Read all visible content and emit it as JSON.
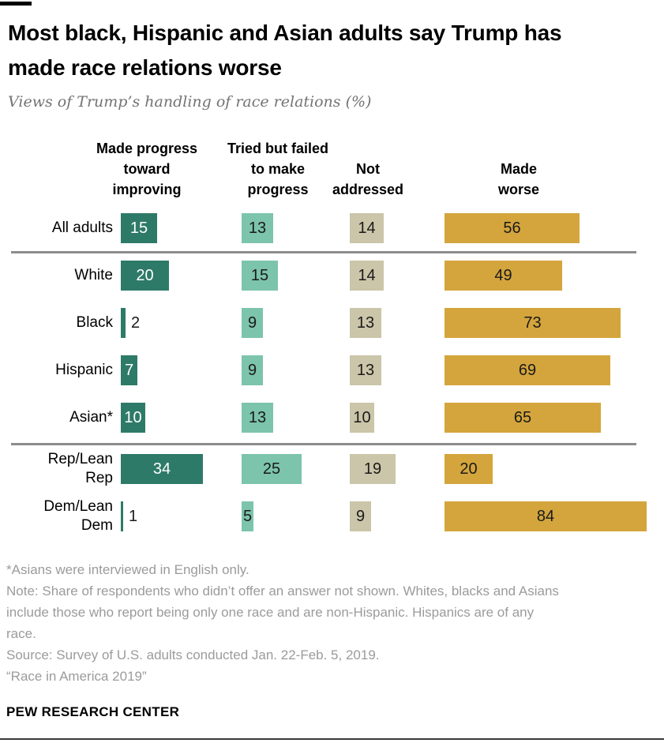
{
  "header": {
    "title": "Most black, Hispanic and Asian adults say Trump has\nmade race relations worse",
    "subtitle": "Views of Trump’s handling of race relations (%)"
  },
  "chart_data": {
    "type": "bar",
    "orientation": "horizontal",
    "unit": "%",
    "categories": [
      "All adults",
      "White",
      "Black",
      "Hispanic",
      "Asian*",
      "Rep/Lean Rep",
      "Dem/Lean Dem"
    ],
    "category_display": [
      "All adults",
      "White",
      "Black",
      "Hispanic",
      "Asian*",
      "Rep/Lean\nRep",
      "Dem/Lean\nDem"
    ],
    "series": [
      {
        "name": "Made progress toward improving",
        "header": "Made progress\ntoward\nimproving",
        "color": "#2e7a68",
        "label_color_inside": "#ffffff",
        "values": [
          15,
          20,
          2,
          7,
          10,
          34,
          1
        ]
      },
      {
        "name": "Tried but failed to make progress",
        "header": "Tried but failed\nto make\nprogress",
        "color": "#7cc4ab",
        "label_color_inside": "#1a1a1a",
        "values": [
          13,
          15,
          9,
          9,
          13,
          25,
          5
        ]
      },
      {
        "name": "Not addressed",
        "header": "Not\naddressed",
        "color": "#cbc5a9",
        "label_color_inside": "#1a1a1a",
        "values": [
          14,
          14,
          13,
          13,
          10,
          19,
          9
        ]
      },
      {
        "name": "Made worse",
        "header": "Made\nworse",
        "color": "#d4a53c",
        "label_color_inside": "#1a1a1a",
        "values": [
          56,
          49,
          73,
          69,
          65,
          20,
          84
        ]
      }
    ],
    "group_dividers_after": [
      0,
      4
    ],
    "xmax": 100,
    "value_label_style": "values shown on bars; tiny values (1, 2) labeled right of bar"
  },
  "footnotes": {
    "asterisk": "*Asians were interviewed in English only.",
    "note": "Note: Share of respondents who didn’t offer an answer not shown. Whites, blacks and Asians\ninclude those who report being only one race and are non-Hispanic. Hispanics are of any\nrace.",
    "source": "Source: Survey of U.S. adults conducted Jan. 22-Feb. 5, 2019.",
    "citation": "“Race in America 2019”"
  },
  "footer": {
    "brand": "PEW RESEARCH CENTER"
  }
}
